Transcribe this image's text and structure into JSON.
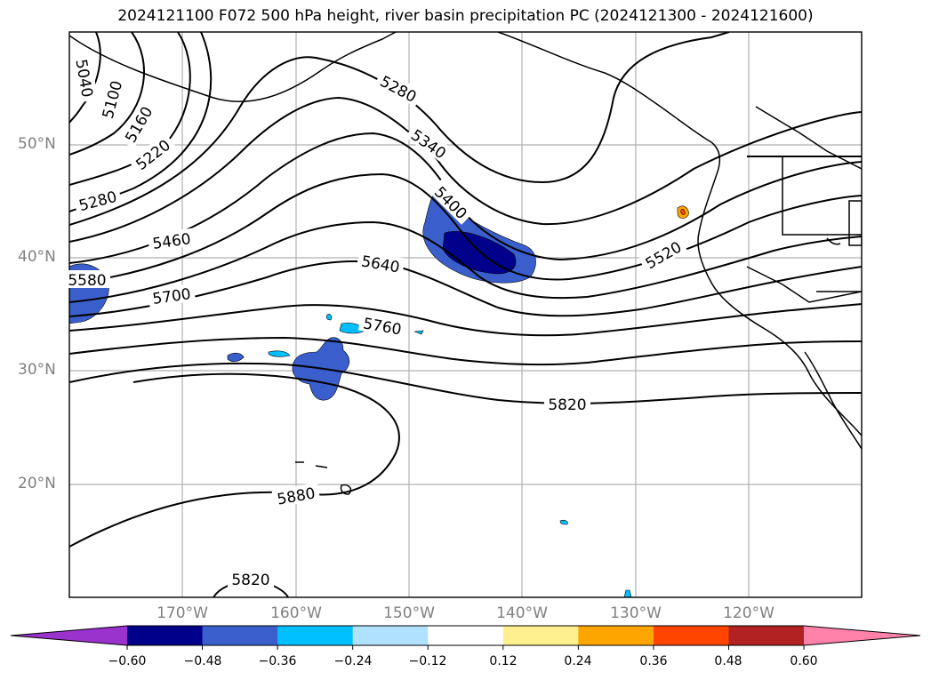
{
  "title": "2024121100 F072 500 hPa height, river basin precipitation PC (2024121300 - 2024121600)",
  "lat_labels": [
    "50°N",
    "40°N",
    "30°N",
    "20°N"
  ],
  "lon_labels": [
    "170°W",
    "160°W",
    "150°W",
    "140°W",
    "130°W",
    "120°W"
  ],
  "contour_labels": [
    "5040",
    "5100",
    "5160",
    "5220",
    "5280",
    "5280",
    "5340",
    "5400",
    "5460",
    "5520",
    "5580",
    "5640",
    "5700",
    "5760",
    "5820",
    "5880",
    "5820"
  ],
  "colorbar": {
    "ticks": [
      "−0.60",
      "−0.48",
      "−0.36",
      "−0.24",
      "−0.12",
      "0.12",
      "0.24",
      "0.36",
      "0.48",
      "0.60"
    ],
    "colors": [
      "#9a32cd",
      "#00008b",
      "#3a5fcd",
      "#00bfff",
      "#b0e2ff",
      "#ffffff",
      "#fff08f",
      "#ffa500",
      "#ff4500",
      "#b22222",
      "#ff82ab"
    ]
  },
  "map_info": {
    "extent_lon": [
      -180,
      -110
    ],
    "extent_lat": [
      10,
      60
    ],
    "contour_units": "gpm",
    "shading": "river basin precipitation PC"
  }
}
